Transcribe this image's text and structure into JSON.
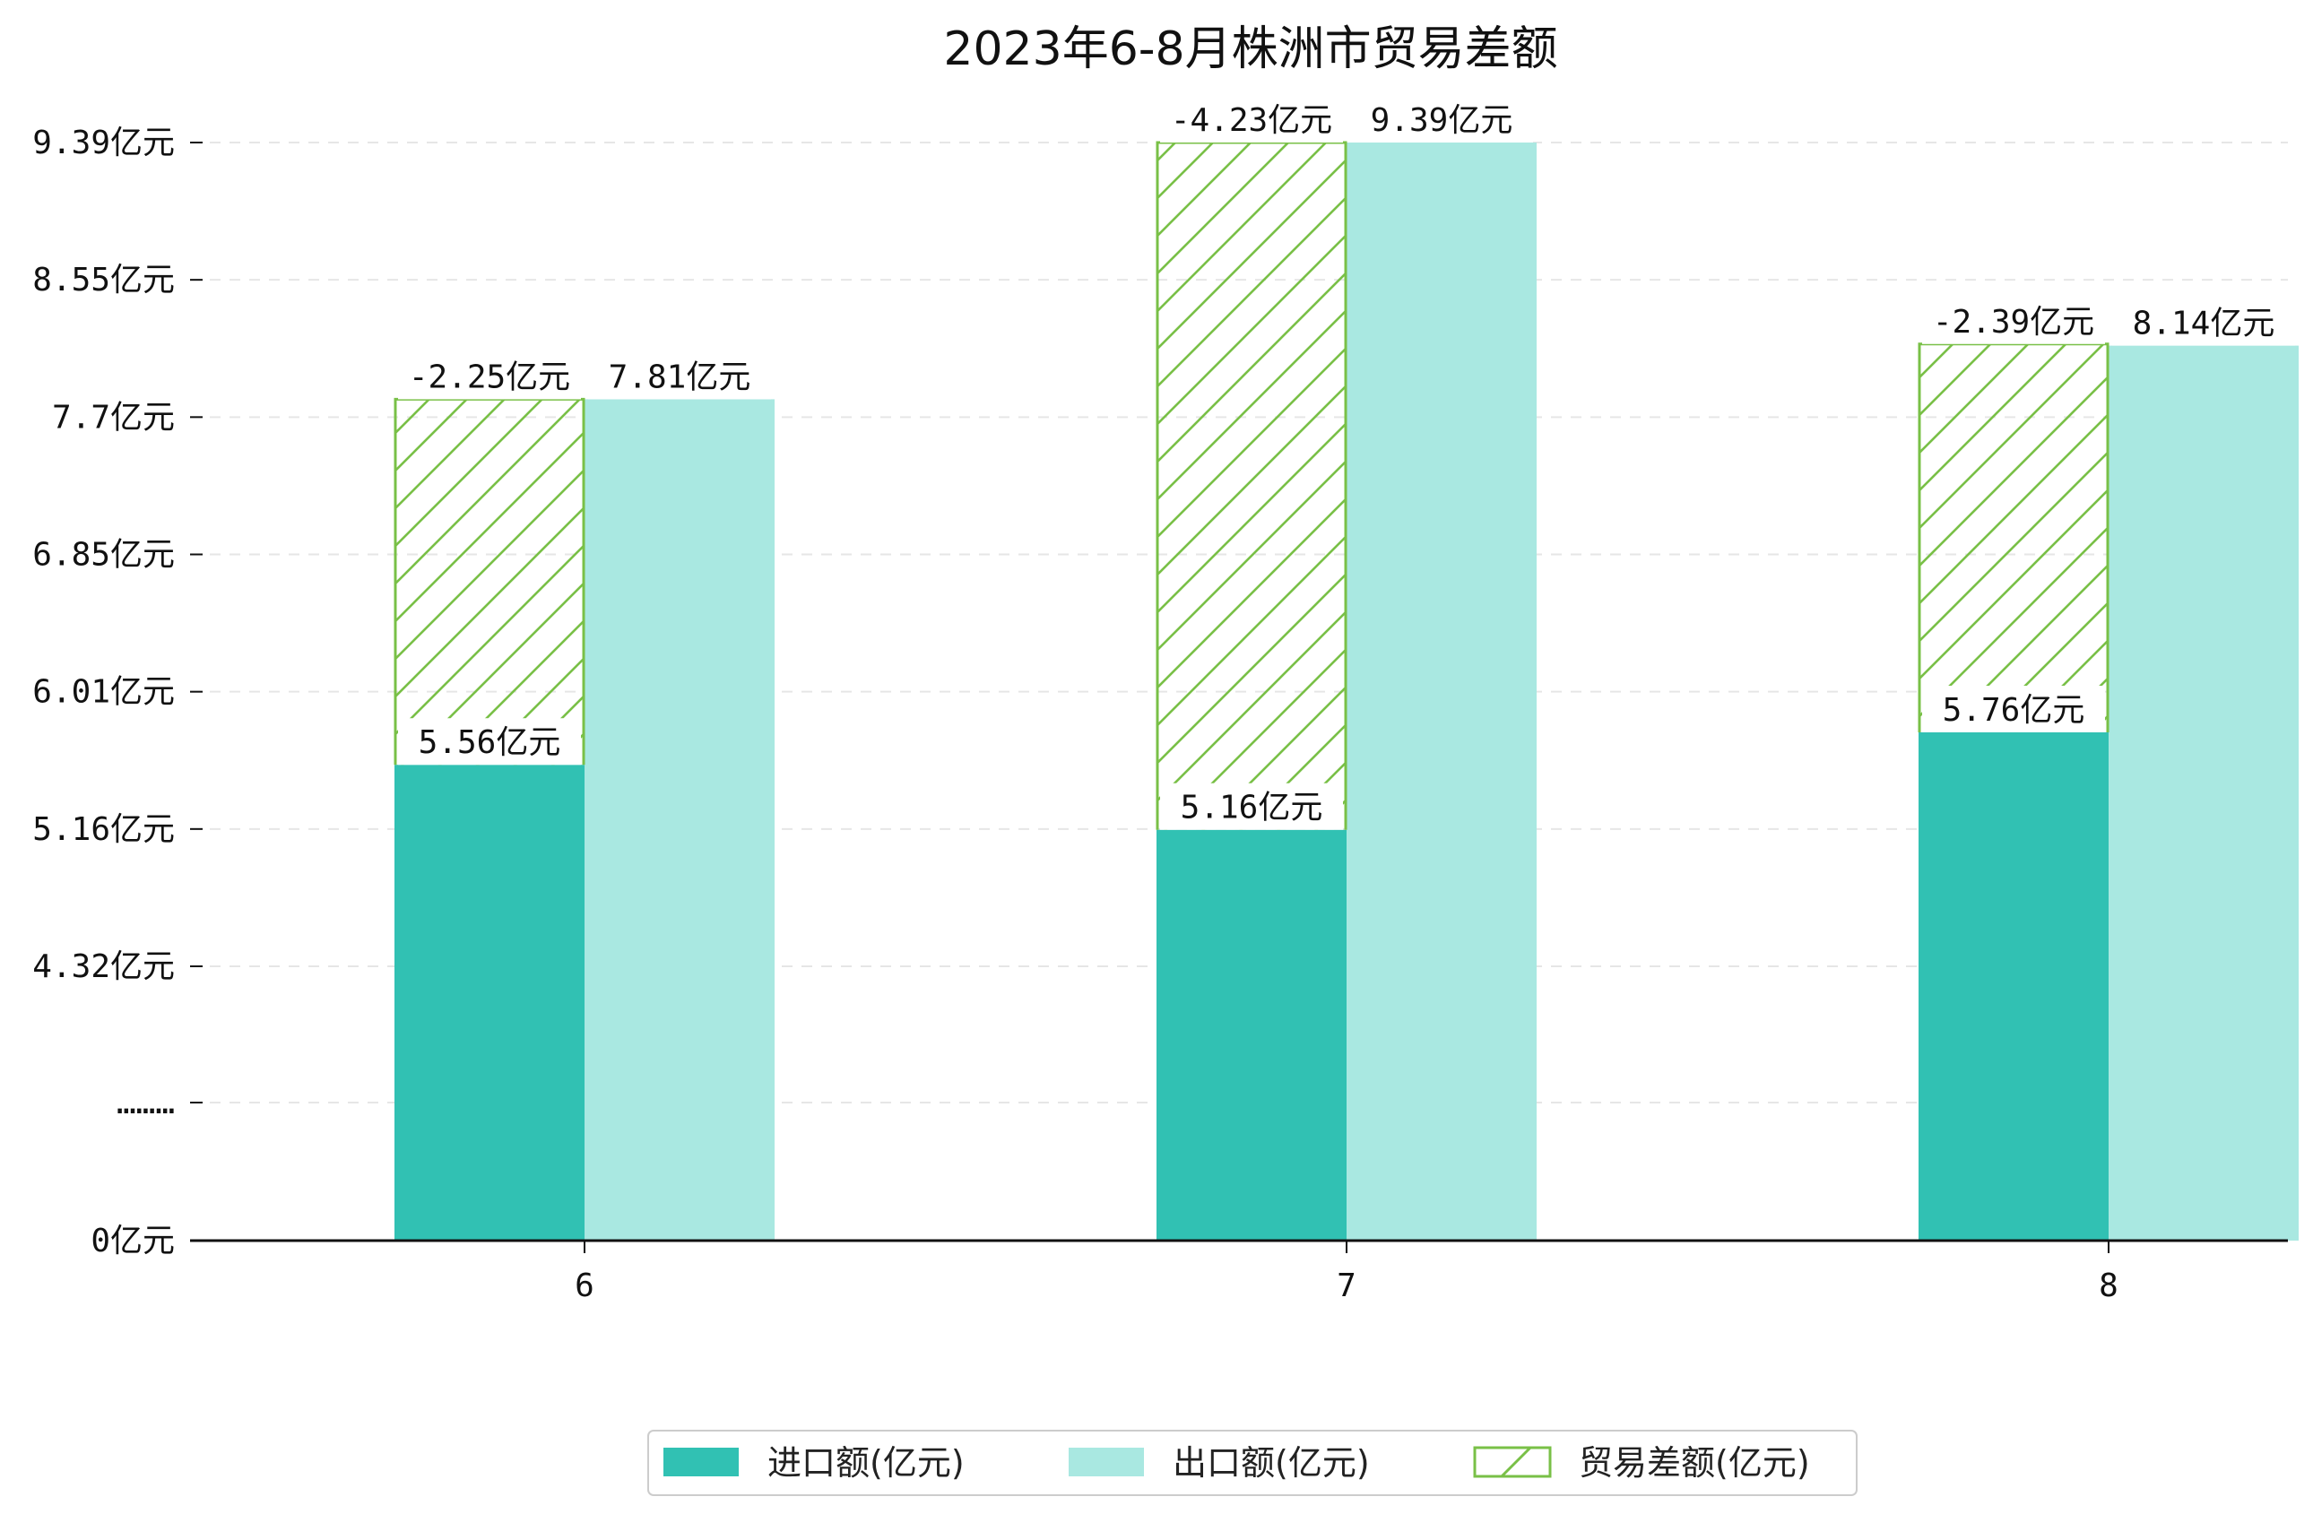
{
  "chart_data": {
    "type": "bar",
    "title": "2023年6-8月株洲市贸易差额",
    "xlabel": "",
    "ylabel": "",
    "categories": [
      "6",
      "7",
      "8"
    ],
    "series": [
      {
        "name": "进口额(亿元)",
        "values": [
          5.56,
          5.16,
          5.76
        ],
        "labels": [
          "5.56亿元",
          "5.16亿元",
          "5.76亿元"
        ],
        "color": "#31c1b3"
      },
      {
        "name": "出口额(亿元)",
        "values": [
          7.81,
          9.39,
          8.14
        ],
        "labels": [
          "7.81亿元",
          "9.39亿元",
          "8.14亿元"
        ],
        "color": "#a9e8e1"
      },
      {
        "name": "贸易差额(亿元)",
        "values": [
          -2.25,
          -4.23,
          -2.39
        ],
        "labels": [
          "-2.25亿元",
          "-4.23亿元",
          "-2.39亿元"
        ],
        "color": "#79c047",
        "pattern": "diagonal-hatch"
      }
    ],
    "y_axis": {
      "broken": true,
      "ticks": [
        {
          "value": 0,
          "label": "0亿元"
        },
        {
          "value": null,
          "label": "………"
        },
        {
          "value": 4.32,
          "label": "4.32亿元"
        },
        {
          "value": 5.16,
          "label": "5.16亿元"
        },
        {
          "value": 6.01,
          "label": "6.01亿元"
        },
        {
          "value": 6.85,
          "label": "6.85亿元"
        },
        {
          "value": 7.7,
          "label": "7.7亿元"
        },
        {
          "value": 8.55,
          "label": "8.55亿元"
        },
        {
          "value": 9.39,
          "label": "9.39亿元"
        }
      ]
    },
    "grid": "horizontal-dashed",
    "legend_position": "bottom-center"
  }
}
